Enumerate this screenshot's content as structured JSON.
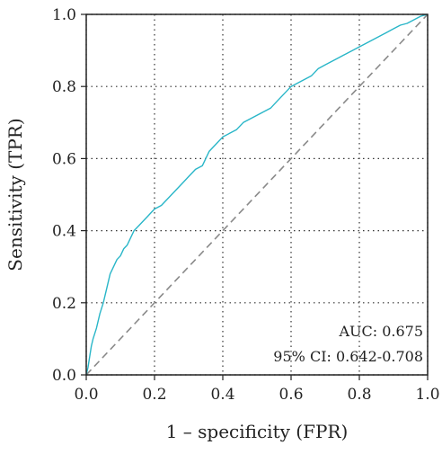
{
  "chart_data": {
    "type": "line",
    "title": "",
    "xlabel": "1 – specificity (FPR)",
    "ylabel": "Sensitivity (TPR)",
    "xlim": [
      0.0,
      1.0
    ],
    "ylim": [
      0.0,
      1.0
    ],
    "x_ticks": [
      0.0,
      0.2,
      0.4,
      0.6,
      0.8,
      1.0
    ],
    "y_ticks": [
      0.0,
      0.2,
      0.4,
      0.6,
      0.8,
      1.0
    ],
    "x_tick_labels": [
      "0.0",
      "0.2",
      "0.4",
      "0.6",
      "0.8",
      "1.0"
    ],
    "y_tick_labels": [
      "0.0",
      "0.2",
      "0.4",
      "0.6",
      "0.8",
      "1.0"
    ],
    "grid": true,
    "grid_style": "dotted",
    "annotations": {
      "auc": "AUC: 0.675",
      "ci": "95% CI: 0.642-0.708"
    },
    "series": [
      {
        "color": "#29b6c8",
        "x": [
          0.0,
          0.005,
          0.01,
          0.015,
          0.02,
          0.03,
          0.04,
          0.05,
          0.06,
          0.07,
          0.08,
          0.09,
          0.1,
          0.11,
          0.12,
          0.13,
          0.14,
          0.15,
          0.16,
          0.17,
          0.18,
          0.19,
          0.2,
          0.22,
          0.24,
          0.26,
          0.28,
          0.3,
          0.32,
          0.34,
          0.35,
          0.36,
          0.38,
          0.4,
          0.42,
          0.44,
          0.46,
          0.48,
          0.5,
          0.52,
          0.54,
          0.56,
          0.58,
          0.6,
          0.62,
          0.64,
          0.66,
          0.68,
          0.7,
          0.72,
          0.74,
          0.76,
          0.78,
          0.8,
          0.82,
          0.84,
          0.86,
          0.88,
          0.9,
          0.92,
          0.94,
          0.96,
          0.98,
          1.0
        ],
        "y": [
          0.0,
          0.02,
          0.05,
          0.08,
          0.1,
          0.13,
          0.17,
          0.2,
          0.24,
          0.28,
          0.3,
          0.32,
          0.33,
          0.35,
          0.36,
          0.38,
          0.4,
          0.41,
          0.42,
          0.43,
          0.44,
          0.45,
          0.46,
          0.47,
          0.49,
          0.51,
          0.53,
          0.55,
          0.57,
          0.58,
          0.6,
          0.62,
          0.64,
          0.66,
          0.67,
          0.68,
          0.7,
          0.71,
          0.72,
          0.73,
          0.74,
          0.76,
          0.78,
          0.8,
          0.81,
          0.82,
          0.83,
          0.85,
          0.86,
          0.87,
          0.88,
          0.89,
          0.9,
          0.91,
          0.92,
          0.93,
          0.94,
          0.95,
          0.96,
          0.97,
          0.975,
          0.985,
          0.995,
          1.0
        ]
      },
      {
        "color": "#8a8a8a",
        "dash": "dashed",
        "x": [
          0.0,
          1.0
        ],
        "y": [
          0.0,
          1.0
        ]
      }
    ]
  }
}
